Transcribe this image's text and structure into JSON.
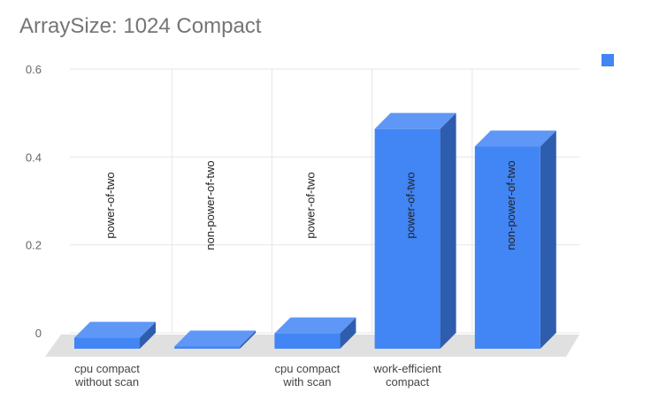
{
  "chart_data": {
    "type": "bar",
    "title": "ArraySize: 1024 Compact",
    "xlabel": "",
    "ylabel": "",
    "ylim": [
      0,
      0.6
    ],
    "yticks": [
      "0",
      "0.2",
      "0.4",
      "0.6"
    ],
    "ytick_values": [
      0,
      0.2,
      0.4,
      0.6
    ],
    "grid": true,
    "three_d": true,
    "legend_position": "top-right",
    "categories": [
      "cpu compact\nwithout scan",
      "",
      "cpu compact\nwith scan",
      "work-efficient\ncompact",
      ""
    ],
    "series": [
      {
        "color": "#4285f4",
        "values": [
          0.025,
          0.005,
          0.035,
          0.5,
          0.46
        ],
        "point_labels": [
          "power-of-two",
          "non-power-of-two",
          "power-of-two",
          "power-of-two",
          "non-power-of-two"
        ]
      }
    ]
  }
}
